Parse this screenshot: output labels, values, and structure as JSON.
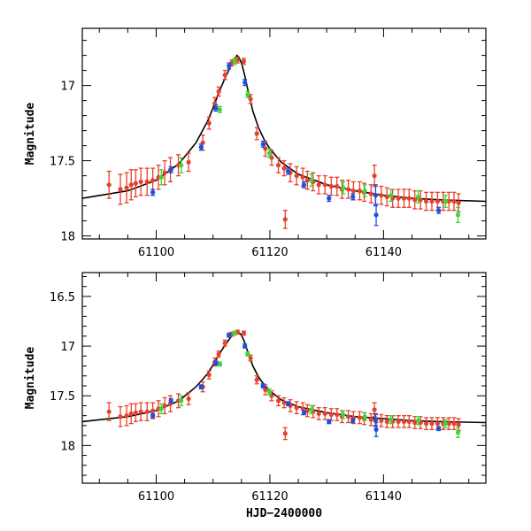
{
  "colors": {
    "model": "#000000",
    "red": "#e8402a",
    "green": "#3fd63a",
    "blue": "#1f4fe0",
    "frame": "#000000"
  },
  "chart_data": [
    {
      "type": "scatter",
      "panel": "top",
      "title": "",
      "xlabel": "",
      "ylabel": "Magnitude",
      "xlim": [
        61087,
        61158
      ],
      "ylim": [
        18.02,
        16.62
      ],
      "xticks": [
        61100,
        61120,
        61140
      ],
      "xtick_labels": [
        "61100",
        "61120",
        "61140"
      ],
      "yticks": [
        17,
        17.5,
        18
      ],
      "ytick_labels": [
        "17",
        "17.5",
        "18"
      ],
      "model": {
        "name": "model light curve",
        "t0": 61114.2,
        "baseline": 17.8,
        "amplitude": 1.0,
        "tE": 2.4,
        "tail_level": 17.8,
        "x": [
          61087,
          61095,
          61100,
          61104,
          61107,
          61109,
          61110,
          61111,
          61112,
          61113,
          61113.5,
          61114,
          61114.2,
          61114.5,
          61115,
          61115.5,
          61116,
          61117,
          61118,
          61119,
          61120,
          61122,
          61125,
          61130,
          61135,
          61140,
          61145,
          61150,
          61158
        ],
        "y": [
          17.75,
          17.7,
          17.63,
          17.52,
          17.38,
          17.24,
          17.15,
          17.05,
          16.96,
          16.88,
          16.84,
          16.81,
          16.8,
          16.81,
          16.85,
          16.92,
          17.01,
          17.17,
          17.28,
          17.36,
          17.42,
          17.51,
          17.59,
          17.66,
          17.7,
          17.73,
          17.75,
          17.76,
          17.77
        ]
      },
      "series": [
        {
          "name": "red",
          "color": "#e8402a",
          "x": [
            61091.7,
            61093.7,
            61094.8,
            61095.6,
            61096.4,
            61097.3,
            61098.4,
            61099.4,
            61100.4,
            61101.5,
            61102.5,
            61103.9,
            61105.7,
            61108.2,
            61109.3,
            61110.3,
            61111.0,
            61112.1,
            61113.3,
            61114.3,
            61115.4,
            61116.6,
            61117.7,
            61119.2,
            61120.3,
            61121.5,
            61122.5,
            61123.6,
            61124.7,
            61125.8,
            61126.6,
            61127.6,
            61128.6,
            61129.7,
            61130.8,
            61131.8,
            61132.7,
            61133.8,
            61134.7,
            61135.8,
            61136.6,
            61137.8,
            61138.6,
            61139.6,
            61140.6,
            61141.6,
            61142.6,
            61143.6,
            61144.5,
            61145.5,
            61146.5,
            61147.5,
            61148.5,
            61149.5,
            61150.5,
            61151.5,
            61152.4,
            61153.2,
            61122.7,
            61138.4
          ],
          "y": [
            17.66,
            17.69,
            17.68,
            17.66,
            17.65,
            17.64,
            17.64,
            17.63,
            17.61,
            17.58,
            17.56,
            17.53,
            17.51,
            17.38,
            17.25,
            17.12,
            17.04,
            16.93,
            16.85,
            16.83,
            16.84,
            17.09,
            17.32,
            17.42,
            17.48,
            17.53,
            17.55,
            17.58,
            17.6,
            17.61,
            17.63,
            17.64,
            17.66,
            17.66,
            17.67,
            17.67,
            17.69,
            17.69,
            17.7,
            17.7,
            17.71,
            17.72,
            17.73,
            17.73,
            17.74,
            17.75,
            17.75,
            17.75,
            17.75,
            17.76,
            17.76,
            17.77,
            17.77,
            17.77,
            17.77,
            17.77,
            17.77,
            17.78,
            17.89,
            17.6
          ],
          "err": [
            0.09,
            0.1,
            0.1,
            0.1,
            0.09,
            0.09,
            0.09,
            0.08,
            0.08,
            0.08,
            0.08,
            0.07,
            0.06,
            0.05,
            0.04,
            0.04,
            0.03,
            0.03,
            0.02,
            0.02,
            0.02,
            0.03,
            0.04,
            0.05,
            0.05,
            0.05,
            0.05,
            0.06,
            0.06,
            0.06,
            0.06,
            0.06,
            0.06,
            0.06,
            0.06,
            0.06,
            0.06,
            0.06,
            0.06,
            0.06,
            0.06,
            0.06,
            0.06,
            0.06,
            0.06,
            0.06,
            0.06,
            0.06,
            0.06,
            0.06,
            0.06,
            0.06,
            0.06,
            0.06,
            0.06,
            0.06,
            0.06,
            0.06,
            0.06,
            0.07
          ]
        },
        {
          "name": "green",
          "color": "#3fd63a",
          "x": [
            61100.9,
            61104.4,
            61111.2,
            61113.8,
            61116.1,
            61119.9,
            61127.3,
            61132.9,
            61136.7,
            61141.3,
            61146.1,
            61150.9,
            61153.1
          ],
          "y": [
            17.61,
            17.53,
            17.16,
            16.84,
            17.06,
            17.45,
            17.63,
            17.68,
            17.7,
            17.73,
            17.74,
            17.77,
            17.86
          ],
          "err": [
            0.05,
            0.05,
            0.02,
            0.02,
            0.02,
            0.03,
            0.04,
            0.04,
            0.04,
            0.04,
            0.04,
            0.04,
            0.05
          ]
        },
        {
          "name": "blue",
          "color": "#1f4fe0",
          "x": [
            61099.4,
            61102.6,
            61107.9,
            61110.5,
            61112.8,
            61115.6,
            61118.8,
            61123.2,
            61126.0,
            61130.4,
            61134.6,
            61138.6,
            61138.7,
            61149.7
          ],
          "y": [
            17.71,
            17.56,
            17.41,
            17.15,
            16.87,
            16.98,
            17.39,
            17.57,
            17.66,
            17.75,
            17.74,
            17.73,
            17.86,
            17.83
          ],
          "err": [
            0.02,
            0.02,
            0.02,
            0.02,
            0.02,
            0.02,
            0.02,
            0.02,
            0.02,
            0.02,
            0.02,
            0.07,
            0.07,
            0.02
          ]
        }
      ]
    },
    {
      "type": "scatter",
      "panel": "bottom",
      "title": "",
      "xlabel": "HJD−2400000",
      "ylabel": "Magnitude",
      "xlim": [
        61087,
        61158
      ],
      "ylim": [
        18.38,
        16.26
      ],
      "xticks": [
        61100,
        61120,
        61140
      ],
      "xtick_labels": [
        "61100",
        "61120",
        "61140"
      ],
      "yticks": [
        16.5,
        17,
        17.5,
        18
      ],
      "ytick_labels": [
        "16.5",
        "17",
        "17.5",
        "18"
      ],
      "model": {
        "name": "model light curve",
        "x": [
          61087,
          61095,
          61100,
          61104,
          61107,
          61109,
          61110,
          61111,
          61112,
          61113,
          61113.5,
          61114,
          61114.2,
          61114.5,
          61115,
          61115.5,
          61116,
          61117,
          61118,
          61119,
          61120,
          61122,
          61125,
          61130,
          61135,
          61140,
          61145,
          61150,
          61158
        ],
        "y": [
          17.76,
          17.71,
          17.65,
          17.55,
          17.41,
          17.28,
          17.19,
          17.09,
          17.0,
          16.92,
          16.88,
          16.86,
          16.85,
          16.86,
          16.89,
          16.95,
          17.04,
          17.2,
          17.31,
          17.39,
          17.45,
          17.54,
          17.61,
          17.67,
          17.71,
          17.73,
          17.75,
          17.76,
          17.77
        ]
      },
      "series": [
        {
          "name": "red",
          "color": "#e8402a",
          "x": [
            61091.7,
            61093.7,
            61094.8,
            61095.6,
            61096.4,
            61097.3,
            61098.4,
            61099.4,
            61100.4,
            61101.5,
            61102.5,
            61103.9,
            61105.7,
            61108.2,
            61109.3,
            61110.3,
            61111.0,
            61112.1,
            61113.3,
            61114.3,
            61115.4,
            61116.6,
            61117.7,
            61119.2,
            61120.3,
            61121.5,
            61122.5,
            61123.6,
            61124.7,
            61125.8,
            61126.6,
            61127.6,
            61128.6,
            61129.7,
            61130.8,
            61131.8,
            61132.7,
            61133.8,
            61134.7,
            61135.8,
            61136.6,
            61137.8,
            61138.6,
            61139.6,
            61140.6,
            61141.6,
            61142.6,
            61143.6,
            61144.5,
            61145.5,
            61146.5,
            61147.5,
            61148.5,
            61149.5,
            61150.5,
            61151.5,
            61152.4,
            61153.2,
            61122.7,
            61138.4
          ],
          "y": [
            17.66,
            17.71,
            17.7,
            17.68,
            17.67,
            17.66,
            17.66,
            17.65,
            17.63,
            17.6,
            17.58,
            17.55,
            17.53,
            17.41,
            17.29,
            17.16,
            17.08,
            16.97,
            16.88,
            16.86,
            16.87,
            17.12,
            17.34,
            17.44,
            17.5,
            17.55,
            17.57,
            17.6,
            17.62,
            17.63,
            17.65,
            17.66,
            17.68,
            17.68,
            17.69,
            17.69,
            17.71,
            17.71,
            17.72,
            17.72,
            17.73,
            17.74,
            17.75,
            17.75,
            17.76,
            17.76,
            17.76,
            17.76,
            17.76,
            17.77,
            17.77,
            17.78,
            17.78,
            17.78,
            17.78,
            17.78,
            17.78,
            17.79,
            17.88,
            17.64
          ],
          "err": [
            0.09,
            0.1,
            0.1,
            0.1,
            0.09,
            0.09,
            0.09,
            0.08,
            0.08,
            0.08,
            0.08,
            0.07,
            0.06,
            0.05,
            0.04,
            0.04,
            0.03,
            0.03,
            0.02,
            0.02,
            0.02,
            0.03,
            0.04,
            0.05,
            0.05,
            0.05,
            0.05,
            0.06,
            0.06,
            0.06,
            0.06,
            0.06,
            0.06,
            0.06,
            0.06,
            0.06,
            0.06,
            0.06,
            0.06,
            0.06,
            0.06,
            0.06,
            0.06,
            0.06,
            0.06,
            0.06,
            0.06,
            0.06,
            0.06,
            0.06,
            0.06,
            0.06,
            0.06,
            0.06,
            0.06,
            0.06,
            0.06,
            0.06,
            0.06,
            0.07
          ]
        },
        {
          "name": "green",
          "color": "#3fd63a",
          "x": [
            61100.9,
            61104.4,
            61111.2,
            61113.8,
            61116.1,
            61119.9,
            61127.3,
            61132.9,
            61136.7,
            61141.3,
            61146.1,
            61150.9,
            61153.1
          ],
          "y": [
            17.63,
            17.55,
            17.18,
            16.87,
            17.08,
            17.46,
            17.64,
            17.69,
            17.71,
            17.74,
            17.75,
            17.78,
            17.87
          ],
          "err": [
            0.05,
            0.05,
            0.02,
            0.02,
            0.02,
            0.03,
            0.04,
            0.04,
            0.04,
            0.04,
            0.04,
            0.04,
            0.05
          ]
        },
        {
          "name": "blue",
          "color": "#1f4fe0",
          "x": [
            61099.4,
            61102.6,
            61107.9,
            61110.5,
            61112.8,
            61115.6,
            61118.8,
            61123.2,
            61126.0,
            61130.4,
            61134.6,
            61138.6,
            61138.7,
            61149.7
          ],
          "y": [
            17.7,
            17.55,
            17.41,
            17.17,
            16.89,
            17.0,
            17.4,
            17.58,
            17.67,
            17.76,
            17.75,
            17.74,
            17.84,
            17.83
          ],
          "err": [
            0.02,
            0.02,
            0.02,
            0.02,
            0.02,
            0.02,
            0.02,
            0.02,
            0.02,
            0.02,
            0.02,
            0.06,
            0.07,
            0.02
          ]
        }
      ]
    }
  ]
}
